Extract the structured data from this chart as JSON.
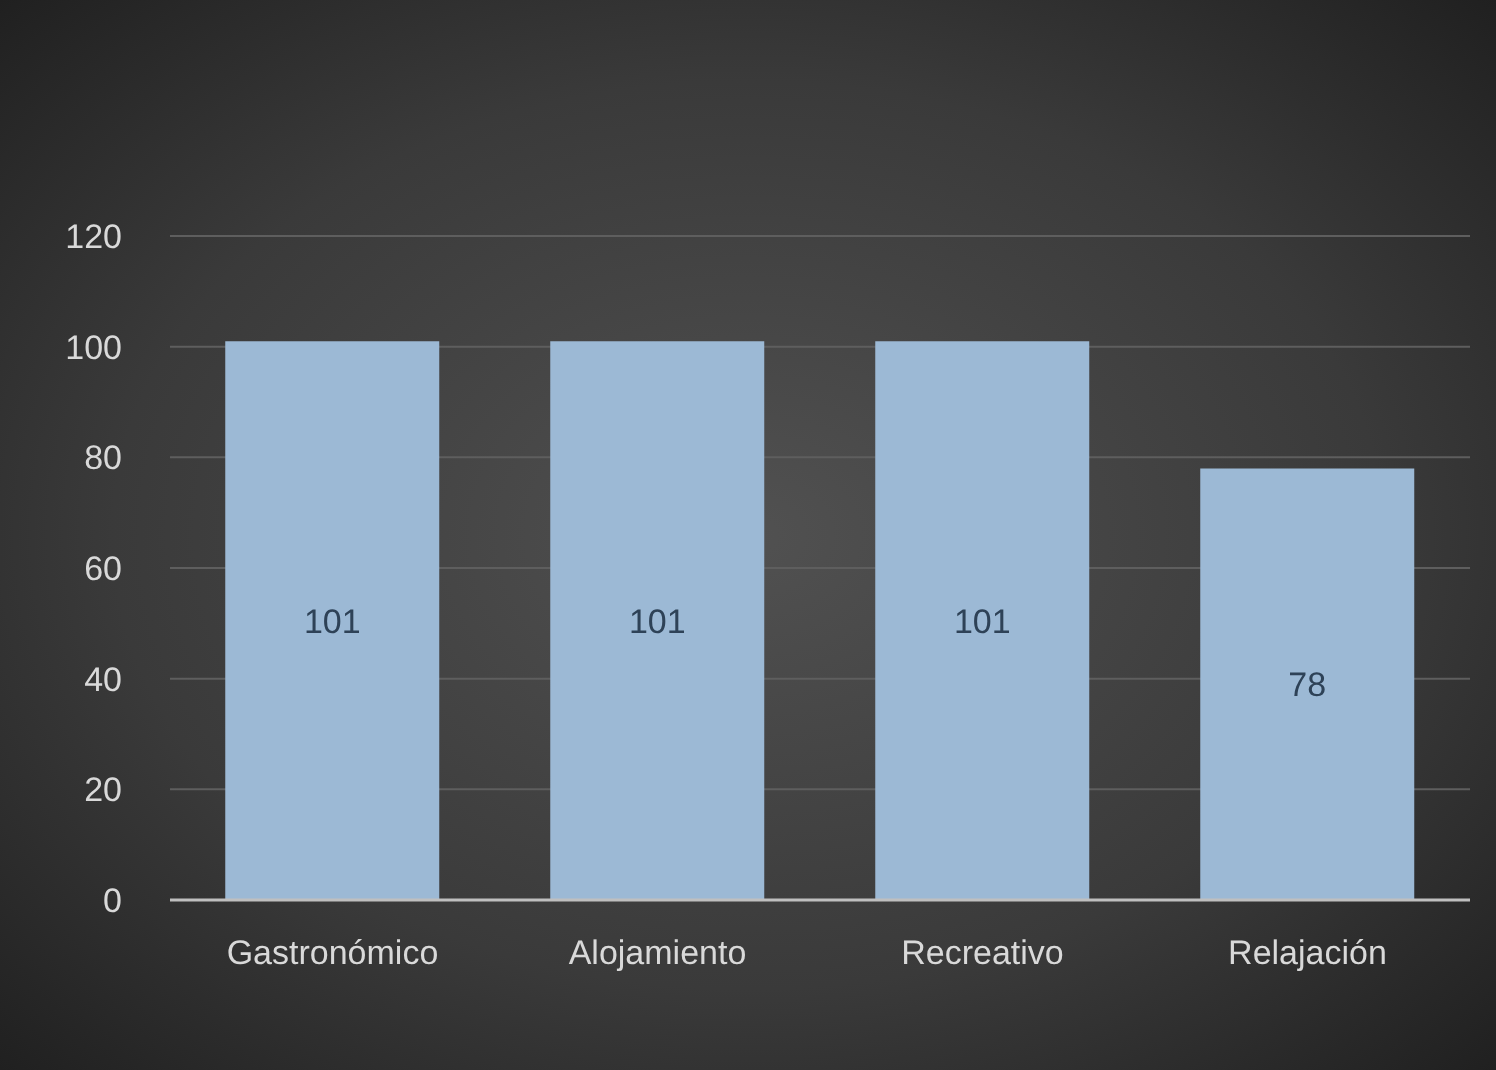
{
  "chart_data": {
    "type": "bar",
    "categories": [
      "Gastronómico",
      "Alojamiento",
      "Recreativo",
      "Relajación"
    ],
    "values": [
      101,
      101,
      101,
      78
    ],
    "color": "#9cb9d5",
    "ylim": [
      0,
      120
    ],
    "yticks": [
      0,
      20,
      40,
      60,
      80,
      100,
      120
    ],
    "grid": "y",
    "data_labels": true
  }
}
